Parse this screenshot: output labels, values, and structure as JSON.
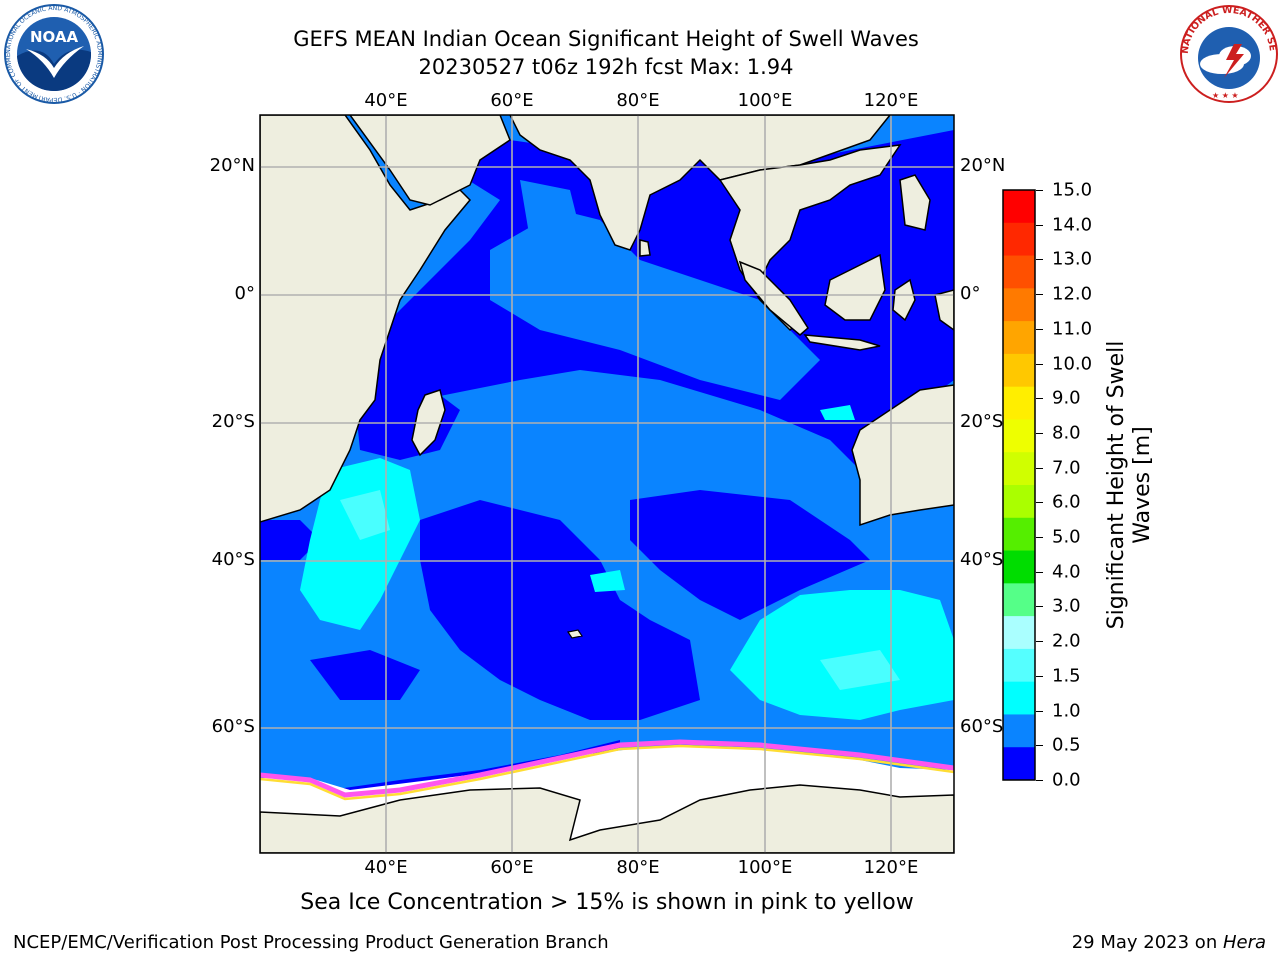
{
  "title": {
    "line1": "GEFS MEAN Indian Ocean Significant Height of Swell Waves",
    "line2": "20230527 t06z 192h fcst   Max: 1.94"
  },
  "map": {
    "lon_ticks": [
      "40°E",
      "60°E",
      "80°E",
      "100°E",
      "120°E"
    ],
    "lat_ticks_left": [
      "20°N",
      "0°",
      "20°S",
      "40°S",
      "60°S"
    ],
    "lat_ticks_right": [
      "20°N",
      "0°",
      "20°S",
      "40°S",
      "60°S"
    ],
    "land_color": "#eeeedf",
    "ocean_colors": {
      "band_0_0.5": "#0000ff",
      "band_0.5_1.0": "#0a84ff",
      "band_1.0_1.5": "#00ffff",
      "band_1.5_2.0": "#49ffff"
    },
    "sea_ice_colors": [
      "#ff55ee",
      "#ffff00",
      "#ffaa00"
    ]
  },
  "colorbar": {
    "label_line1": "Significant Height of Swell",
    "label_line2": "Waves [m]",
    "ticks": [
      "15.0",
      "14.0",
      "13.0",
      "12.0",
      "11.0",
      "10.0",
      "9.0",
      "8.0",
      "7.0",
      "6.0",
      "5.0",
      "4.0",
      "3.0",
      "2.0",
      "1.5",
      "1.0",
      "0.5",
      "0.0"
    ],
    "colors": [
      "#ff0000",
      "#ff2800",
      "#ff5000",
      "#ff7a00",
      "#ffa500",
      "#ffc800",
      "#ffee00",
      "#eeff00",
      "#d0ff00",
      "#aaff00",
      "#55ee00",
      "#00dd00",
      "#55ff88",
      "#aaffff",
      "#55ffff",
      "#00ffff",
      "#0a84ff",
      "#0000ff"
    ]
  },
  "caption": "Sea Ice Concentration > 15% is shown in pink to yellow",
  "footer": {
    "left": "NCEP/EMC/Verification Post Processing Product Generation Branch",
    "date": "29 May 2023 on ",
    "machine": "Hera"
  },
  "logos": {
    "noaa_text": "NOAA",
    "noaa_ring": "NATIONAL OCEANIC AND ATMOSPHERIC ADMINISTRATION · U.S. DEPARTMENT OF COMMERCE",
    "nws_ring": "NATIONAL WEATHER SERVICE"
  }
}
